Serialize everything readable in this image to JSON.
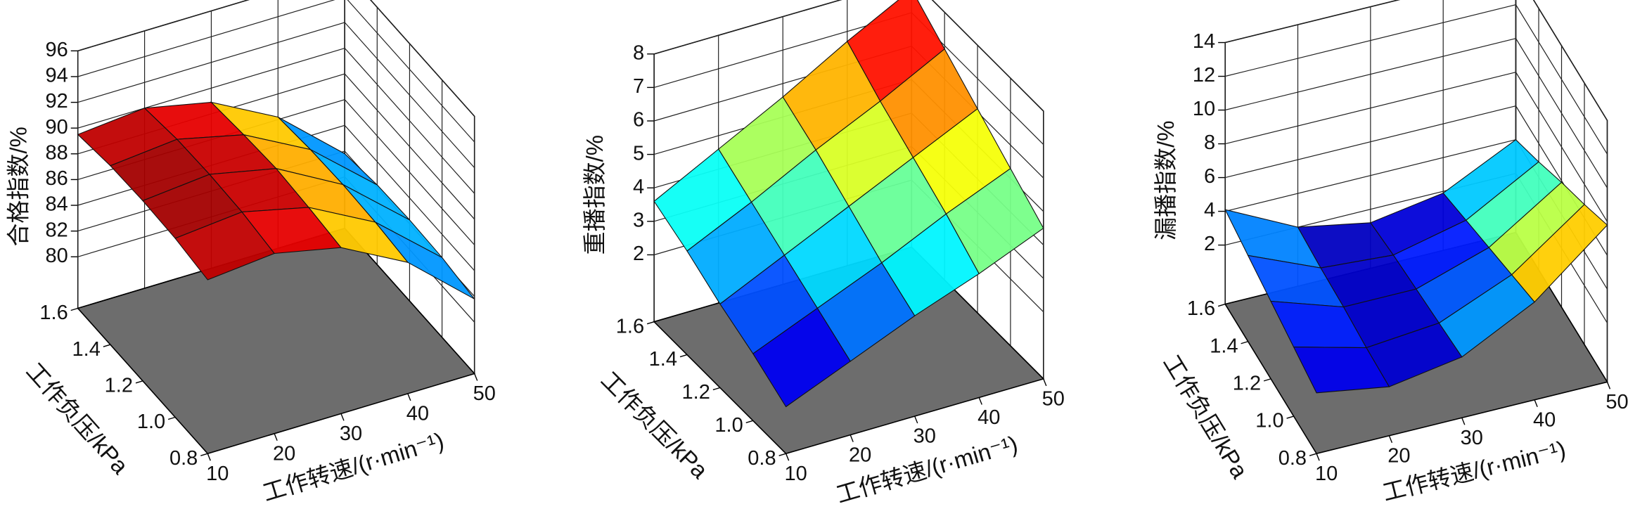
{
  "chart_data": [
    {
      "type": "surface",
      "colormap": "jet",
      "zlabel": "合格指数/%",
      "xlabel": "工作转速/(r·min⁻¹)",
      "ylabel": "工作负压/kPa",
      "x": [
        10,
        20,
        30,
        40,
        50
      ],
      "y": [
        0.8,
        1.0,
        1.2,
        1.4,
        1.6
      ],
      "z": [
        [
          89.5,
          90.0,
          88.9,
          86.2,
          81.8
        ],
        [
          89.9,
          90.4,
          89.2,
          86.5,
          82.2
        ],
        [
          90.0,
          90.5,
          89.4,
          86.6,
          82.3
        ],
        [
          89.9,
          90.4,
          89.2,
          86.5,
          82.2
        ],
        [
          89.5,
          90.0,
          88.9,
          86.2,
          81.8
        ]
      ],
      "xlim": [
        10,
        50
      ],
      "ylim": [
        0.8,
        1.6
      ],
      "zlim": [
        76,
        96
      ],
      "xticks": [
        10,
        20,
        30,
        40,
        50
      ],
      "yticks": [
        0.8,
        {
          "value": 1,
          "label": "1.0"
        },
        1.2,
        1.4,
        1.6
      ],
      "zticks": [
        80,
        82,
        84,
        86,
        88,
        90,
        92,
        94,
        96
      ]
    },
    {
      "type": "surface",
      "colormap": "jet",
      "zlabel": "重播指数/%",
      "xlabel": "工作转速/(r·min⁻¹)",
      "ylabel": "工作负压/kPa",
      "x": [
        10,
        20,
        30,
        40,
        50
      ],
      "y": [
        0.8,
        1.0,
        1.2,
        1.4,
        1.6
      ],
      "z": [
        [
          1.4,
          2.2,
          3.0,
          3.7,
          4.5
        ],
        [
          2.0,
          2.8,
          3.6,
          4.5,
          5.3
        ],
        [
          2.5,
          3.4,
          4.3,
          5.2,
          6.1
        ],
        [
          3.1,
          4.0,
          5.0,
          5.9,
          6.9
        ],
        [
          3.6,
          4.6,
          5.6,
          6.7,
          7.7
        ]
      ],
      "xlim": [
        10,
        50
      ],
      "ylim": [
        0.8,
        1.6
      ],
      "zlim": [
        0,
        8
      ],
      "xticks": [
        10,
        20,
        30,
        40,
        50
      ],
      "yticks": [
        0.8,
        {
          "value": 1,
          "label": "1.0"
        },
        1.2,
        1.4,
        1.6
      ],
      "zticks": [
        2,
        3,
        4,
        5,
        6,
        7,
        8
      ]
    },
    {
      "type": "surface",
      "colormap": "jet",
      "zlabel": "漏播指数/%",
      "xlabel": "工作转速/(r·min⁻¹)",
      "ylabel": "工作负压/kPa",
      "x": [
        10,
        20,
        30,
        40,
        50
      ],
      "y": [
        0.8,
        1.0,
        1.2,
        1.4,
        1.6
      ],
      "z": [
        [
          2.1,
          1.4,
          2.1,
          4.3,
          7.8
        ],
        [
          2.6,
          1.5,
          1.9,
          3.7,
          6.8
        ],
        [
          3.1,
          1.7,
          1.7,
          3.1,
          5.9
        ],
        [
          3.6,
          1.8,
          1.5,
          2.5,
          4.9
        ],
        [
          4.1,
          2.0,
          1.2,
          1.9,
          4.0
        ]
      ],
      "xlim": [
        10,
        50
      ],
      "ylim": [
        0.8,
        1.6
      ],
      "zlim": [
        -1.5,
        14
      ],
      "xticks": [
        10,
        20,
        30,
        40,
        50
      ],
      "yticks": [
        0.8,
        {
          "value": 1,
          "label": "1.0"
        },
        1.2,
        1.4,
        1.6
      ],
      "zticks": [
        2,
        4,
        6,
        8,
        10,
        12,
        14
      ]
    }
  ]
}
